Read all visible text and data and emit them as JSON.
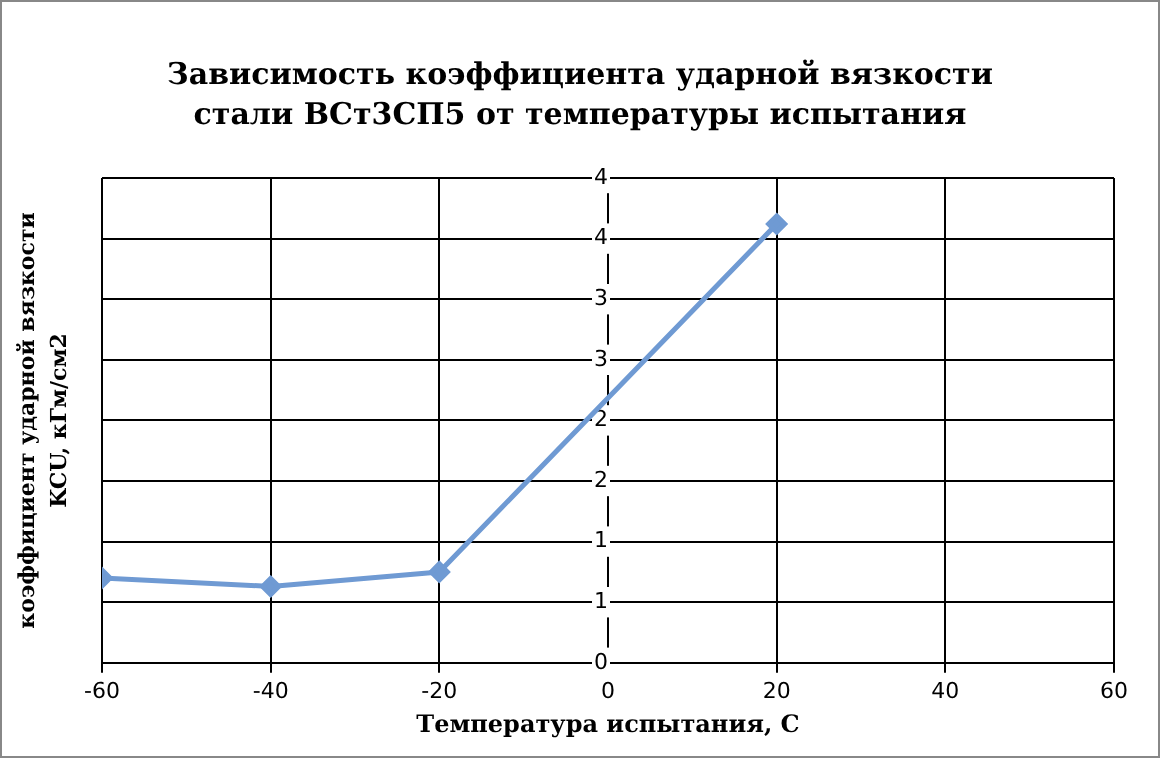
{
  "chart_data": {
    "type": "line",
    "title": "Зависимость коэффициента ударной вязкости стали ВСт3СП5 от температуры испытания",
    "xlabel": "Температура испытания, С",
    "ylabel": "коэффициент ударной вязкости KCU, кГм/см2",
    "x": [
      -60,
      -40,
      -20,
      20
    ],
    "series": [
      {
        "color": "#6f9ad3",
        "values": [
          0.7,
          0.63,
          0.75,
          3.62
        ]
      }
    ],
    "xlim": [
      -60,
      60
    ],
    "xticks": [
      -60,
      -40,
      -20,
      0,
      20,
      40,
      60
    ],
    "ylim": [
      0,
      4
    ],
    "yticks": [
      0,
      {
        "value": 0.5,
        "label": "1"
      },
      1,
      {
        "value": 1.5,
        "label": "2"
      },
      2,
      {
        "value": 2.5,
        "label": "3"
      },
      3,
      {
        "value": 3.5,
        "label": "4"
      },
      4
    ],
    "grid": true,
    "legend": false,
    "marker": "diamond",
    "line_style": "solid"
  }
}
